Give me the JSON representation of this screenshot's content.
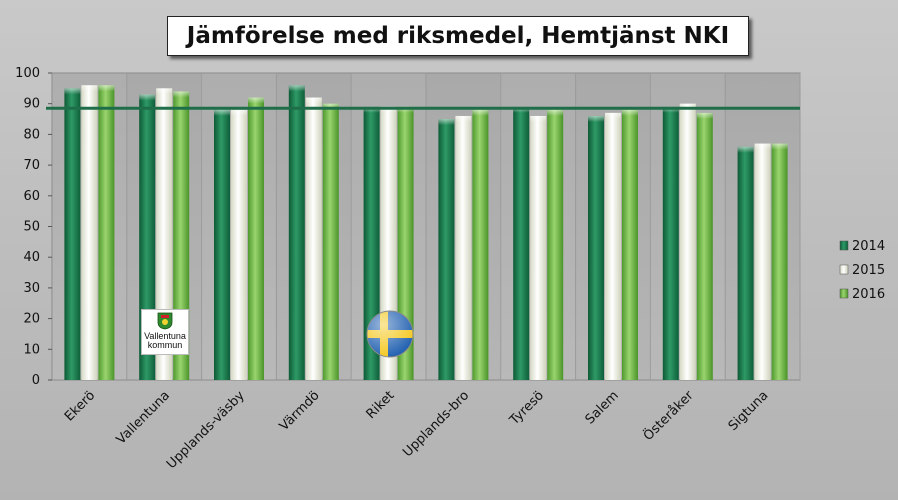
{
  "chart_data": {
    "type": "bar",
    "title": "Jämförelse med riksmedel, Hemtjänst NKI",
    "categories": [
      "Ekerö",
      "Vallentuna",
      "Upplands-väsby",
      "Värmdö",
      "Riket",
      "Upplands-bro",
      "Tyresö",
      "Salem",
      "Österåker",
      "Sigtuna"
    ],
    "series": [
      {
        "name": "2014",
        "values": [
          95,
          93,
          88,
          96,
          89,
          85,
          89,
          86,
          89,
          76
        ],
        "color": "#1a7a4f"
      },
      {
        "name": "2015",
        "values": [
          96,
          95,
          88,
          92,
          89,
          86,
          86,
          87,
          90,
          77
        ],
        "color": "#f2f4e6"
      },
      {
        "name": "2016",
        "values": [
          96,
          94,
          92,
          90,
          89,
          88,
          88,
          88,
          87,
          77
        ],
        "color": "#6fb843"
      }
    ],
    "reference_line": {
      "value": 88.5,
      "color": "#1f6e4a"
    },
    "ylim": [
      0,
      100
    ],
    "yticks": [
      0,
      10,
      20,
      30,
      40,
      50,
      60,
      70,
      80,
      90,
      100
    ],
    "grid": false,
    "legend_position": "right",
    "xlabel": "",
    "ylabel": ""
  },
  "logos": {
    "vallentuna_text_line1": "Vallentuna",
    "vallentuna_text_line2": "kommun"
  }
}
